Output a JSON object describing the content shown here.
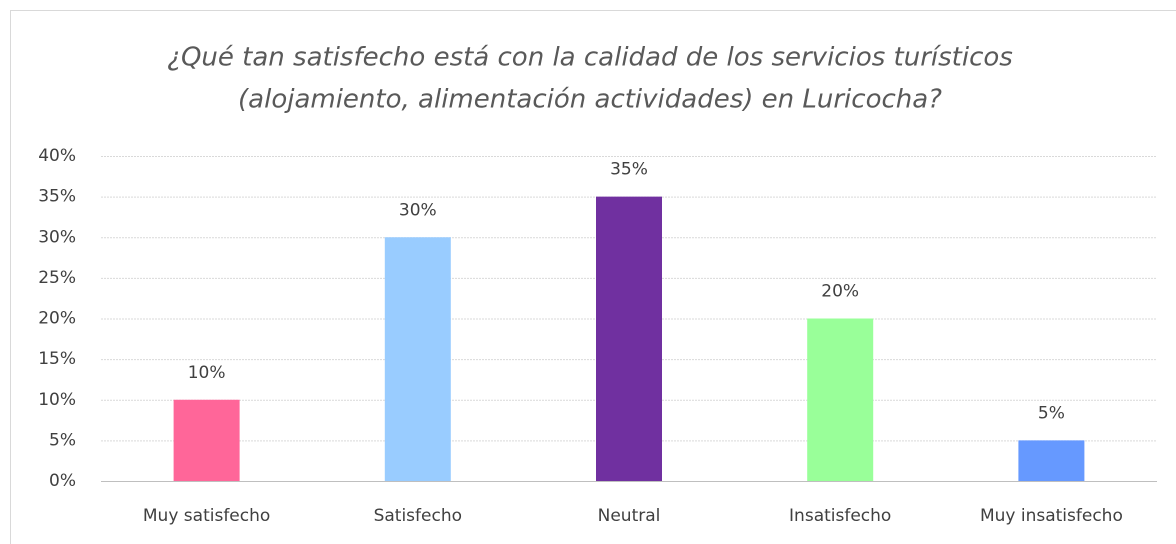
{
  "chart_data": {
    "type": "bar",
    "title": [
      "¿Qué tan satisfecho está con la calidad de los servicios turísticos",
      "(alojamiento, alimentación actividades) en Luricocha?"
    ],
    "categories": [
      "Muy satisfecho",
      "Satisfecho",
      "Neutral",
      "Insatisfecho",
      "Muy insatisfecho"
    ],
    "values": [
      10,
      30,
      35,
      20,
      5
    ],
    "value_labels": [
      "10%",
      "30%",
      "35%",
      "20%",
      "5%"
    ],
    "colors": [
      "#ff6699",
      "#99ccff",
      "#7030a0",
      "#99ff99",
      "#6699ff"
    ],
    "ylim": [
      0,
      40
    ],
    "yticks": [
      {
        "value": 0,
        "label": "0%"
      },
      {
        "value": 5,
        "label": "5%"
      },
      {
        "value": 10,
        "label": "10%"
      },
      {
        "value": 15,
        "label": "15%"
      },
      {
        "value": 20,
        "label": "20%"
      },
      {
        "value": 25,
        "label": "25%"
      },
      {
        "value": 30,
        "label": "30%"
      },
      {
        "value": 35,
        "label": "35%"
      },
      {
        "value": 40,
        "label": "40%"
      }
    ],
    "grid": true
  }
}
